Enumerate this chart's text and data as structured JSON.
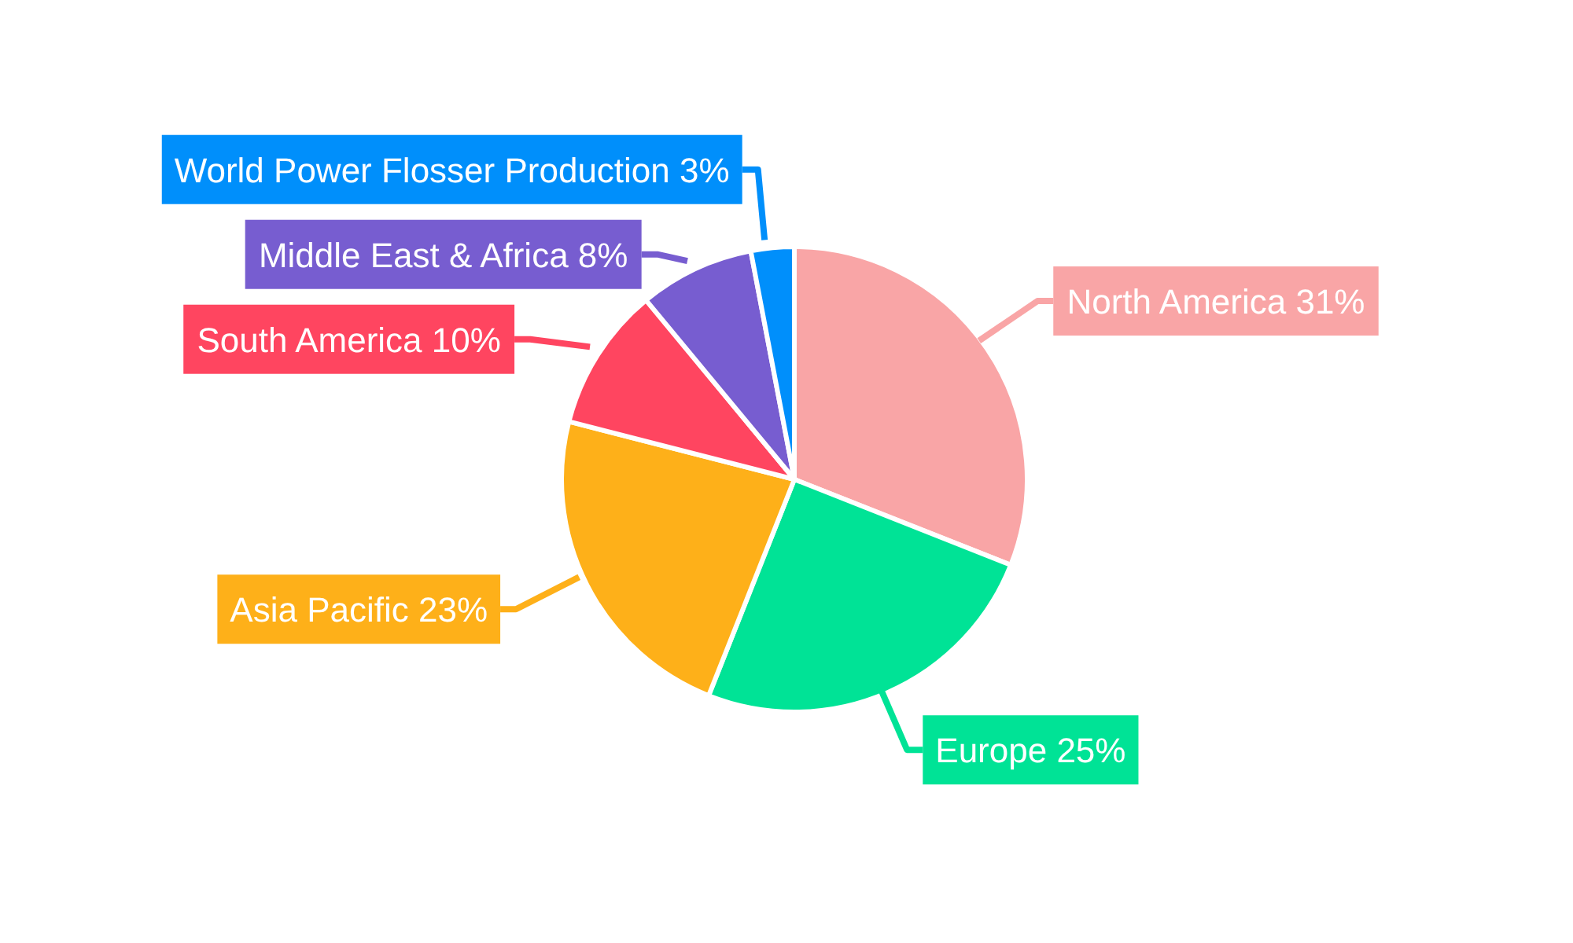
{
  "chart_data": {
    "type": "pie",
    "categories": [
      "North America",
      "Europe",
      "Asia Pacific",
      "South America",
      "Middle East & Africa",
      "World Power Flosser Production"
    ],
    "values": [
      31,
      25,
      23,
      10,
      8,
      3
    ],
    "value_labels": [
      "31%",
      "25%",
      "23%",
      "10%",
      "8%",
      "3%"
    ],
    "colors": [
      "#f9a5a6",
      "#00e396",
      "#feb019",
      "#ff4560",
      "#775dd0",
      "#008ffb"
    ]
  }
}
